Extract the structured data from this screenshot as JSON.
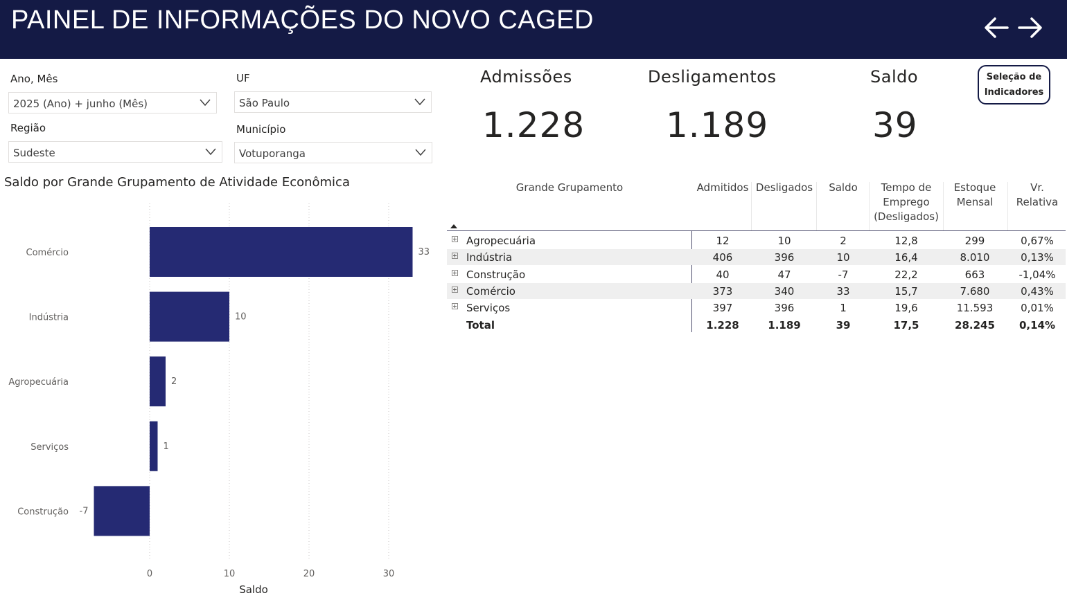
{
  "header": {
    "title": "PAINEL DE INFORMAÇÕES DO NOVO CAGED"
  },
  "filters": {
    "ano_mes": {
      "label": "Ano, Mês",
      "value": "2025 (Ano) + junho (Mês)"
    },
    "uf": {
      "label": "UF",
      "value": "São Paulo"
    },
    "regiao": {
      "label": "Região",
      "value": "Sudeste"
    },
    "municipio": {
      "label": "Município",
      "value": "Votuporanga"
    }
  },
  "kpis": {
    "admissoes": {
      "label": "Admissões",
      "value": "1.228"
    },
    "desligamentos": {
      "label": "Desligamentos",
      "value": "1.189"
    },
    "saldo": {
      "label": "Saldo",
      "value": "39"
    }
  },
  "indicator_button": {
    "line1": "Seleção de",
    "line2": "Indicadores"
  },
  "colors": {
    "header": "#141a45",
    "bar": "#252a73",
    "row_alt": "#efefef"
  },
  "chart_data": {
    "type": "bar",
    "orientation": "horizontal",
    "title": "Saldo por Grande Grupamento de Atividade Econômica",
    "categories": [
      "Comércio",
      "Indústria",
      "Agropecuária",
      "Serviços",
      "Construção"
    ],
    "values": [
      33,
      10,
      2,
      1,
      -7
    ],
    "data_labels": [
      "33",
      "10",
      "2",
      "1",
      "-7"
    ],
    "xlabel": "Saldo",
    "ylabel": "",
    "xticks": [
      0,
      10,
      20,
      30
    ],
    "xlim": [
      -7,
      33
    ],
    "grid": true
  },
  "table": {
    "headers": {
      "grupamento": "Grande Grupamento",
      "admitidos": "Admitidos",
      "desligados": "Desligados",
      "saldo": "Saldo",
      "tempo_1": "Tempo de",
      "tempo_2": "Emprego",
      "tempo_3": "(Desligados)",
      "estoque_1": "Estoque",
      "estoque_2": "Mensal",
      "vr_1": "Vr.",
      "vr_2": "Relativa"
    },
    "rows": [
      {
        "name": "Agropecuária",
        "admitidos": "12",
        "desligados": "10",
        "saldo": "2",
        "tempo": "12,8",
        "estoque": "299",
        "vr": "0,67%"
      },
      {
        "name": "Indústria",
        "admitidos": "406",
        "desligados": "396",
        "saldo": "10",
        "tempo": "16,4",
        "estoque": "8.010",
        "vr": "0,13%"
      },
      {
        "name": "Construção",
        "admitidos": "40",
        "desligados": "47",
        "saldo": "-7",
        "tempo": "22,2",
        "estoque": "663",
        "vr": "-1,04%"
      },
      {
        "name": "Comércio",
        "admitidos": "373",
        "desligados": "340",
        "saldo": "33",
        "tempo": "15,7",
        "estoque": "7.680",
        "vr": "0,43%"
      },
      {
        "name": "Serviços",
        "admitidos": "397",
        "desligados": "396",
        "saldo": "1",
        "tempo": "19,6",
        "estoque": "11.593",
        "vr": "0,01%"
      }
    ],
    "total": {
      "name": "Total",
      "admitidos": "1.228",
      "desligados": "1.189",
      "saldo": "39",
      "tempo": "17,5",
      "estoque": "28.245",
      "vr": "0,14%"
    }
  }
}
